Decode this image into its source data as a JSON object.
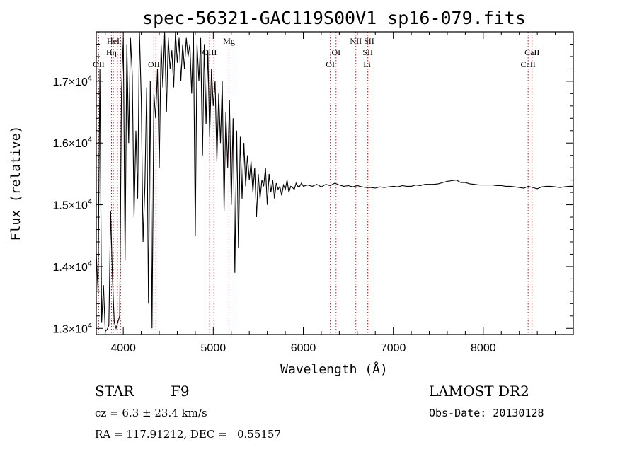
{
  "chart_data": {
    "type": "line",
    "title": "spec-56321-GAC119S00V1_sp16-079.fits",
    "xlabel": "Wavelength (Å)",
    "ylabel": "Flux (relative)",
    "xlim": [
      3700,
      9000
    ],
    "ylim": [
      12900,
      17800
    ],
    "x_ticks": [
      4000,
      5000,
      6000,
      7000,
      8000
    ],
    "y_ticks": [
      {
        "value": 13000,
        "mantissa": "1.3",
        "base": "×10",
        "exp": "4"
      },
      {
        "value": 14000,
        "mantissa": "1.4",
        "base": "×10",
        "exp": "4"
      },
      {
        "value": 15000,
        "mantissa": "1.5",
        "base": "×10",
        "exp": "4"
      },
      {
        "value": 16000,
        "mantissa": "1.6",
        "base": "×10",
        "exp": "4"
      },
      {
        "value": 17000,
        "mantissa": "1.7",
        "base": "×10",
        "exp": "4"
      }
    ],
    "grid": false,
    "series": [
      {
        "color": "#000000",
        "x": [
          3700,
          3720,
          3740,
          3760,
          3780,
          3800,
          3820,
          3840,
          3860,
          3880,
          3900,
          3920,
          3940,
          3960,
          3980,
          4000,
          4020,
          4040,
          4060,
          4080,
          4100,
          4120,
          4140,
          4160,
          4180,
          4200,
          4220,
          4240,
          4260,
          4280,
          4300,
          4320,
          4340,
          4360,
          4380,
          4400,
          4420,
          4440,
          4460,
          4480,
          4500,
          4520,
          4540,
          4560,
          4580,
          4600,
          4620,
          4640,
          4660,
          4680,
          4700,
          4720,
          4740,
          4760,
          4780,
          4800,
          4820,
          4840,
          4860,
          4880,
          4900,
          4920,
          4940,
          4960,
          4980,
          5000,
          5020,
          5040,
          5060,
          5080,
          5100,
          5120,
          5140,
          5160,
          5180,
          5200,
          5220,
          5240,
          5260,
          5280,
          5300,
          5320,
          5340,
          5360,
          5380,
          5400,
          5420,
          5440,
          5460,
          5480,
          5500,
          5520,
          5540,
          5560,
          5580,
          5600,
          5620,
          5640,
          5660,
          5680,
          5700,
          5720,
          5740,
          5760,
          5780,
          5800,
          5820,
          5840,
          5860,
          5880,
          5900,
          5920,
          5940,
          5960,
          5980,
          6000,
          6050,
          6100,
          6150,
          6200,
          6250,
          6300,
          6350,
          6400,
          6450,
          6500,
          6550,
          6600,
          6650,
          6700,
          6750,
          6800,
          6850,
          6900,
          6950,
          7000,
          7050,
          7100,
          7150,
          7200,
          7250,
          7300,
          7350,
          7400,
          7450,
          7500,
          7550,
          7600,
          7650,
          7700,
          7750,
          7800,
          7850,
          7900,
          7950,
          8000,
          8050,
          8100,
          8150,
          8200,
          8250,
          8300,
          8350,
          8400,
          8450,
          8500,
          8550,
          8600,
          8650,
          8700,
          8750,
          8800,
          8850,
          8900,
          8950,
          9000
        ],
        "y": [
          14200,
          13600,
          17200,
          13100,
          13700,
          12950,
          12980,
          13050,
          14900,
          13800,
          13100,
          13000,
          13100,
          13200,
          16800,
          17700,
          14100,
          17600,
          16000,
          17700,
          17100,
          14800,
          16200,
          15100,
          17800,
          16700,
          14400,
          15300,
          16900,
          13400,
          17000,
          13000,
          16800,
          16400,
          17200,
          15600,
          17600,
          16900,
          17800,
          16500,
          17700,
          17200,
          17500,
          16900,
          17800,
          17300,
          17700,
          17000,
          17600,
          17200,
          17700,
          17400,
          17600,
          16800,
          17800,
          14500,
          17600,
          17000,
          17700,
          15800,
          17600,
          16300,
          17500,
          16100,
          17200,
          16600,
          17000,
          15700,
          16800,
          16000,
          17000,
          14900,
          16500,
          15600,
          16700,
          15000,
          16400,
          13900,
          16200,
          14300,
          16100,
          15100,
          16000,
          15300,
          15800,
          15400,
          15700,
          15200,
          15600,
          14800,
          15500,
          15100,
          15400,
          15300,
          15600,
          15000,
          15500,
          15200,
          15400,
          15100,
          15350,
          15250,
          15300,
          15150,
          15320,
          15250,
          15400,
          15200,
          15300,
          15280,
          15250,
          15350,
          15300,
          15300,
          15350,
          15300,
          15320,
          15300,
          15330,
          15290,
          15330,
          15310,
          15350,
          15320,
          15300,
          15310,
          15290,
          15310,
          15290,
          15280,
          15280,
          15270,
          15290,
          15280,
          15290,
          15300,
          15290,
          15310,
          15300,
          15300,
          15320,
          15310,
          15330,
          15330,
          15330,
          15340,
          15360,
          15380,
          15390,
          15400,
          15360,
          15360,
          15340,
          15330,
          15320,
          15320,
          15320,
          15320,
          15310,
          15310,
          15300,
          15300,
          15290,
          15280,
          15270,
          15300,
          15280,
          15260,
          15290,
          15300,
          15300,
          15290,
          15280,
          15290,
          15300,
          15300
        ]
      }
    ],
    "lines": [
      {
        "wave": 3727,
        "label": "OII",
        "row": 2
      },
      {
        "wave": 3869,
        "label": "Hη",
        "row": 1
      },
      {
        "wave": 3889,
        "label": "HeI",
        "row": 0
      },
      {
        "wave": 3935,
        "label": "",
        "row": -1
      },
      {
        "wave": 3970,
        "label": "",
        "row": -1
      },
      {
        "wave": 4340,
        "label": "OII",
        "row": 2
      },
      {
        "wave": 4363,
        "label": "",
        "row": -1
      },
      {
        "wave": 4959,
        "label": "OIII",
        "row": 1
      },
      {
        "wave": 5007,
        "label": "",
        "row": -1
      },
      {
        "wave": 5175,
        "label": "Mg",
        "row": 0
      },
      {
        "wave": 6300,
        "label": "OI",
        "row": 2
      },
      {
        "wave": 6364,
        "label": "OI",
        "row": 1
      },
      {
        "wave": 6584,
        "label": "NII",
        "row": 0
      },
      {
        "wave": 6708,
        "label": "Li",
        "row": 2
      },
      {
        "wave": 6717,
        "label": "SII",
        "row": 1
      },
      {
        "wave": 6731,
        "label": "SII",
        "row": 0
      },
      {
        "wave": 8498,
        "label": "CaII",
        "row": 2
      },
      {
        "wave": 8542,
        "label": "CaII",
        "row": 1
      }
    ],
    "line_color": "#b22222"
  },
  "info": {
    "object_class": "STAR",
    "subclass": "F9",
    "survey": "LAMOST DR2",
    "redshift": "cz = 6.3 ± 23.4 km/s",
    "obs_date": "Obs-Date: 20130128",
    "coords": "RA = 117.91212, DEC =   0.55157"
  }
}
